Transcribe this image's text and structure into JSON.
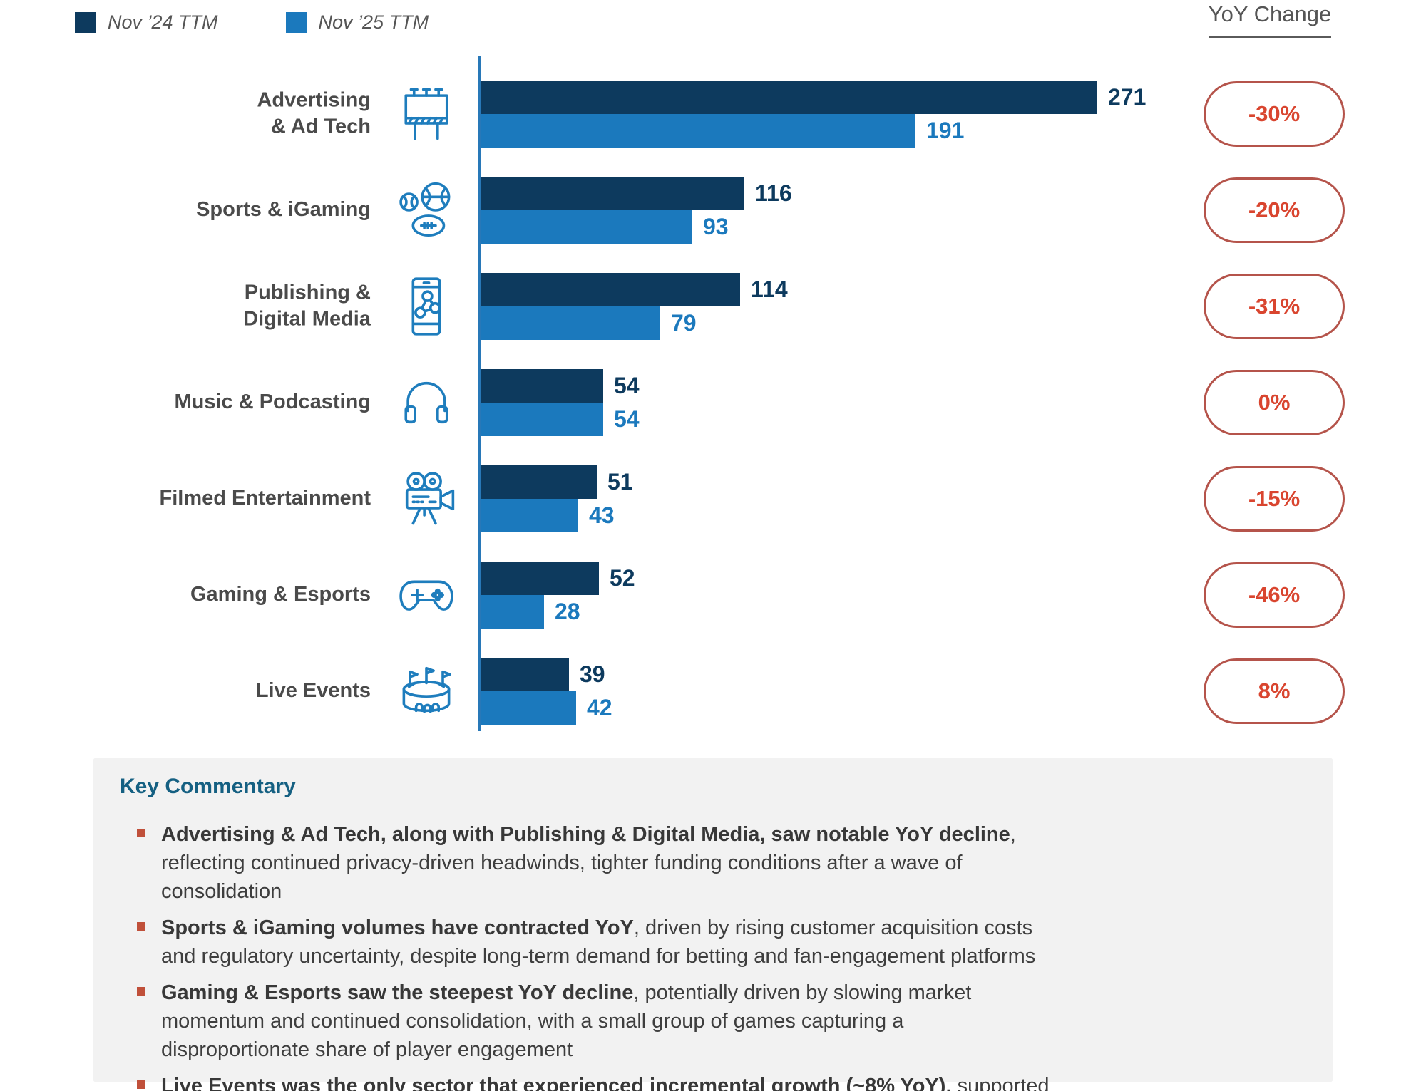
{
  "legend": {
    "items": [
      {
        "label": "Nov ’24 TTM",
        "swatch_color": "#0d3a5e"
      },
      {
        "label": "Nov ’25 TTM",
        "swatch_color": "#1b79bd"
      }
    ]
  },
  "yoy_header": {
    "title": "YoY Change"
  },
  "chart_data": {
    "type": "bar",
    "orientation": "horizontal",
    "categories": [
      "Advertising\n& Ad Tech",
      "Sports & iGaming",
      "Publishing &\nDigital Media",
      "Music & Podcasting",
      "Filmed Entertainment",
      "Gaming & Esports",
      "Live Events"
    ],
    "icons": [
      "billboard-icon",
      "sports-balls-icon",
      "phone-share-icon",
      "headphones-icon",
      "film-camera-icon",
      "game-controller-icon",
      "stadium-icon"
    ],
    "series": [
      {
        "name": "Nov ’24 TTM",
        "color": "#0d3a5e",
        "values": [
          271,
          116,
          114,
          54,
          51,
          52,
          39
        ]
      },
      {
        "name": "Nov ’25 TTM",
        "color": "#1b79bd",
        "values": [
          191,
          93,
          79,
          54,
          43,
          28,
          42
        ]
      }
    ],
    "yoy_change": [
      "-30%",
      "-20%",
      "-31%",
      "0%",
      "-15%",
      "-46%",
      "8%"
    ],
    "xlim": [
      0,
      280
    ],
    "grid": false,
    "value_labels": true,
    "legend_position": "top-left"
  },
  "commentary": {
    "title": "Key Commentary",
    "bullets": [
      {
        "bold": "Advertising & Ad Tech, along with Publishing & Digital Media, saw notable YoY decline",
        "rest": ", reflecting continued privacy-driven headwinds, tighter funding conditions after a wave of consolidation"
      },
      {
        "bold": "Sports & iGaming volumes have contracted YoY",
        "rest": ", driven by rising customer acquisition costs and regulatory uncertainty, despite long-term demand for betting and fan-engagement platforms"
      },
      {
        "bold": "Gaming & Esports saw the steepest YoY decline",
        "rest": ", potentially driven by slowing market momentum and continued consolidation, with a small group of games capturing a disproportionate share of player engagement"
      },
      {
        "bold": "Live Events was the only sector that experienced incremental growth (~8% YoY),",
        "rest": " supported by strong consumer demand for in-person experiences"
      }
    ]
  },
  "colors": {
    "navy": "#0d3a5e",
    "blue": "#1b79bd",
    "icon_blue": "#1e7dbd",
    "badge_border": "#b5544b",
    "badge_text": "#d9452f",
    "bullet_marker": "#c0503a",
    "commentary_bg": "#f2f2f2",
    "commentary_title": "#156082",
    "axis": "#2878b8",
    "label_gray": "#4a4a4a"
  }
}
